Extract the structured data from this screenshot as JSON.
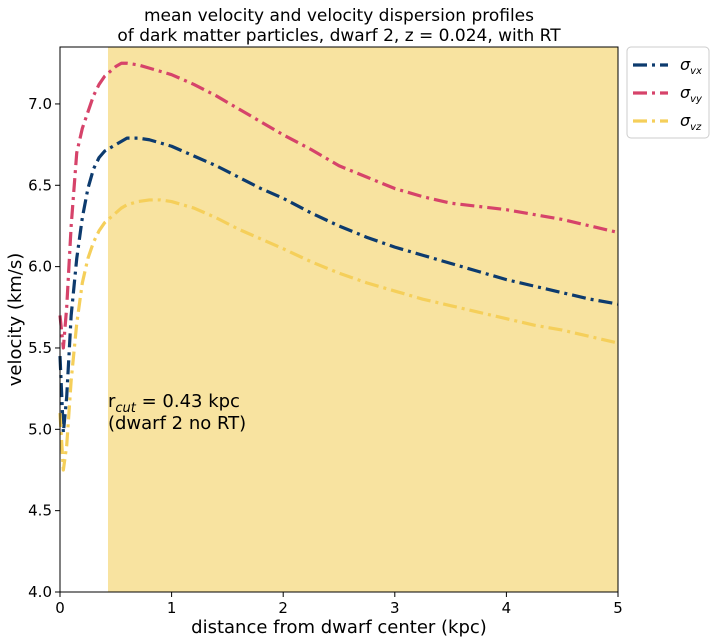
{
  "chart_data": {
    "type": "line",
    "title": "mean velocity and velocity dispersion profiles\nof dark matter particles, dwarf 2, z = 0.024, with RT",
    "xlabel": "distance from dwarf center (kpc)",
    "ylabel": "velocity (km/s)",
    "xlim": [
      0,
      5
    ],
    "ylim": [
      4.0,
      7.35
    ],
    "xticks": [
      0,
      1,
      2,
      3,
      4,
      5
    ],
    "yticks": [
      4.0,
      4.5,
      5.0,
      5.5,
      6.0,
      6.5,
      7.0
    ],
    "grid": false,
    "legend_position": "outside-top-right",
    "shaded_region": {
      "x_start": 0.43,
      "x_end": 5,
      "color": "#f8e3a0"
    },
    "annotation": {
      "line1_main": "r",
      "line1_sub": "cut",
      "line1_rest": " = 0.43 kpc",
      "line2": "(dwarf 2 no RT)",
      "x": 0.43,
      "y": 5.05
    },
    "series": [
      {
        "name": "σ_vx",
        "legend_main": "σ",
        "legend_sub": "vx",
        "color": "#0d3b6e",
        "style": "dashdot",
        "x": [
          0.0,
          0.03,
          0.06,
          0.1,
          0.15,
          0.2,
          0.25,
          0.3,
          0.35,
          0.4,
          0.45,
          0.5,
          0.55,
          0.6,
          0.7,
          0.8,
          0.9,
          1.0,
          1.2,
          1.4,
          1.6,
          1.8,
          2.0,
          2.25,
          2.5,
          2.75,
          3.0,
          3.25,
          3.5,
          3.75,
          4.0,
          4.25,
          4.5,
          4.75,
          5.0
        ],
        "values": [
          5.45,
          4.98,
          5.2,
          5.7,
          6.05,
          6.3,
          6.48,
          6.6,
          6.67,
          6.71,
          6.73,
          6.75,
          6.77,
          6.79,
          6.79,
          6.78,
          6.76,
          6.74,
          6.68,
          6.62,
          6.55,
          6.48,
          6.42,
          6.33,
          6.25,
          6.18,
          6.12,
          6.07,
          6.02,
          5.97,
          5.92,
          5.88,
          5.84,
          5.8,
          5.77
        ]
      },
      {
        "name": "σ_vy",
        "legend_main": "σ",
        "legend_sub": "vy",
        "color": "#d6436a",
        "style": "dashdot",
        "x": [
          0.0,
          0.03,
          0.06,
          0.1,
          0.15,
          0.2,
          0.25,
          0.3,
          0.35,
          0.4,
          0.45,
          0.5,
          0.55,
          0.6,
          0.7,
          0.8,
          0.9,
          1.0,
          1.2,
          1.4,
          1.6,
          1.8,
          2.0,
          2.25,
          2.5,
          2.75,
          3.0,
          3.25,
          3.5,
          3.75,
          4.0,
          4.25,
          4.5,
          4.75,
          5.0
        ],
        "values": [
          5.7,
          5.5,
          5.75,
          6.25,
          6.7,
          6.85,
          6.95,
          7.05,
          7.12,
          7.17,
          7.2,
          7.23,
          7.25,
          7.25,
          7.24,
          7.22,
          7.2,
          7.18,
          7.12,
          7.05,
          6.97,
          6.89,
          6.81,
          6.72,
          6.62,
          6.55,
          6.48,
          6.43,
          6.39,
          6.37,
          6.35,
          6.32,
          6.29,
          6.25,
          6.21
        ]
      },
      {
        "name": "σ_vz",
        "legend_main": "σ",
        "legend_sub": "vz",
        "color": "#f5cf5a",
        "style": "dashdot",
        "x": [
          0.0,
          0.03,
          0.06,
          0.1,
          0.15,
          0.2,
          0.25,
          0.3,
          0.35,
          0.4,
          0.45,
          0.5,
          0.55,
          0.6,
          0.7,
          0.8,
          0.9,
          1.0,
          1.2,
          1.4,
          1.6,
          1.8,
          2.0,
          2.25,
          2.5,
          2.75,
          3.0,
          3.25,
          3.5,
          3.75,
          4.0,
          4.25,
          4.5,
          4.75,
          5.0
        ],
        "values": [
          5.1,
          4.75,
          4.9,
          5.3,
          5.65,
          5.9,
          6.05,
          6.15,
          6.22,
          6.27,
          6.3,
          6.33,
          6.36,
          6.38,
          6.4,
          6.41,
          6.41,
          6.4,
          6.36,
          6.3,
          6.23,
          6.17,
          6.11,
          6.03,
          5.96,
          5.9,
          5.85,
          5.8,
          5.76,
          5.72,
          5.68,
          5.64,
          5.61,
          5.57,
          5.53
        ]
      }
    ]
  }
}
